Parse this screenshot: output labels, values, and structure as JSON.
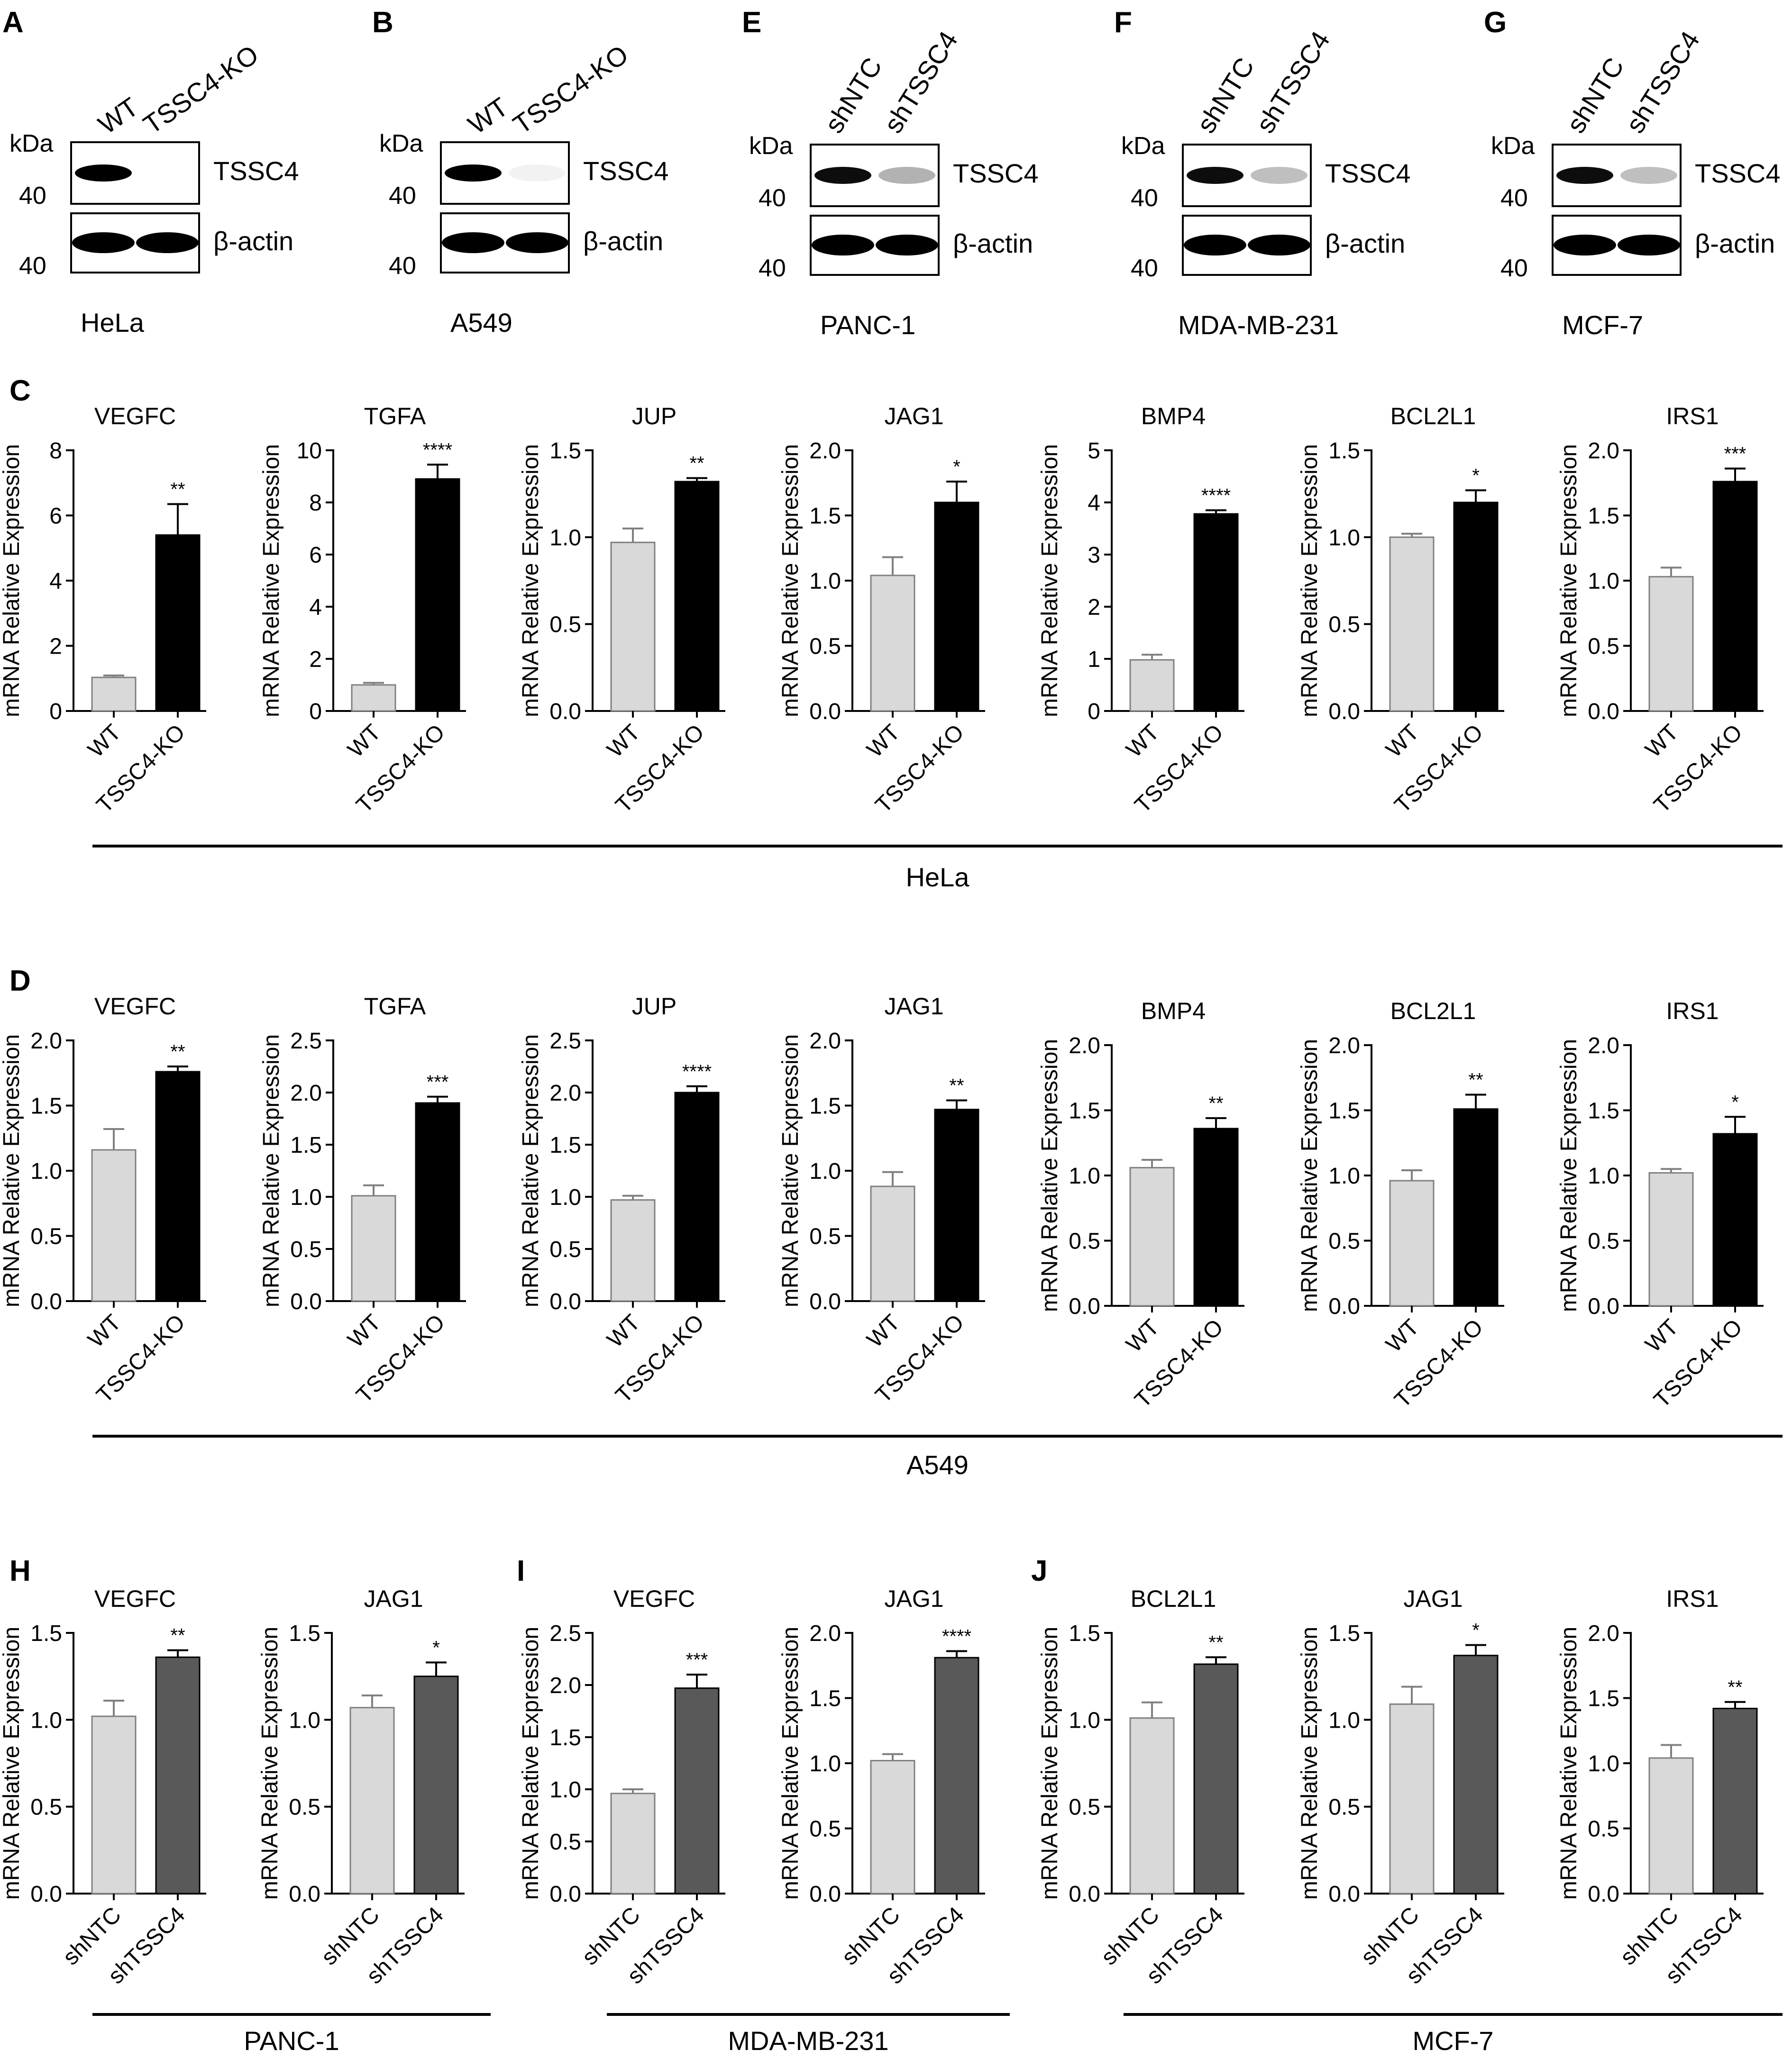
{
  "colors": {
    "wt_bar": "#d9d9d9",
    "ko_bar": "#000000",
    "sh_bar": "#595959",
    "axis": "#000000",
    "edge": "#808080"
  },
  "blots": [
    {
      "panel": "A",
      "lanes": [
        "WT",
        "TSSC4-KO"
      ],
      "cell_line": "HeLa",
      "kda": "kDa",
      "mw_top": "40",
      "mw_bottom": "40",
      "proteins": [
        "TSSC4",
        "β-actin"
      ],
      "band_intensity": [
        1.0,
        0.0
      ]
    },
    {
      "panel": "B",
      "lanes": [
        "WT",
        "TSSC4-KO"
      ],
      "cell_line": "A549",
      "kda": "kDa",
      "mw_top": "40",
      "mw_bottom": "40",
      "proteins": [
        "TSSC4",
        "β-actin"
      ],
      "band_intensity": [
        1.0,
        0.05
      ]
    },
    {
      "panel": "E",
      "lanes": [
        "shNTC",
        "shTSSC4"
      ],
      "cell_line": "PANC-1",
      "kda": "kDa",
      "mw_top": "40",
      "mw_bottom": "40",
      "proteins": [
        "TSSC4",
        "β-actin"
      ],
      "band_intensity": [
        0.95,
        0.3
      ]
    },
    {
      "panel": "F",
      "lanes": [
        "shNTC",
        "shTSSC4"
      ],
      "cell_line": "MDA-MB-231",
      "kda": "kDa",
      "mw_top": "40",
      "mw_bottom": "40",
      "proteins": [
        "TSSC4",
        "β-actin"
      ],
      "band_intensity": [
        0.95,
        0.25
      ]
    },
    {
      "panel": "G",
      "lanes": [
        "shNTC",
        "shTSSC4"
      ],
      "cell_line": "MCF-7",
      "kda": "kDa",
      "mw_top": "40",
      "mw_bottom": "40",
      "proteins": [
        "TSSC4",
        "β-actin"
      ],
      "band_intensity": [
        0.95,
        0.25
      ]
    }
  ],
  "group_labels": {
    "C": "HeLa",
    "D": "A549",
    "H": "PANC-1",
    "I": "MDA-MB-231",
    "J": "MCF-7"
  },
  "panel_letters": {
    "C": "C",
    "D": "D",
    "H": "H",
    "I": "I",
    "J": "J"
  },
  "chart_data": [
    {
      "id": "C1",
      "panel": "C",
      "type": "bar",
      "title": "VEGFC",
      "ylabel": "mRNA Relative Expression",
      "categories": [
        "WT",
        "TSSC4-KO"
      ],
      "values": [
        1.03,
        5.4
      ],
      "errors": [
        0.06,
        0.95
      ],
      "ylim": [
        0,
        8
      ],
      "yticks": [
        "0",
        "2",
        "4",
        "6",
        "8"
      ],
      "sig": "**"
    },
    {
      "id": "C2",
      "panel": "C",
      "type": "bar",
      "title": "TGFA",
      "ylabel": "mRNA Relative Expression",
      "categories": [
        "WT",
        "TSSC4-KO"
      ],
      "values": [
        1.0,
        8.9
      ],
      "errors": [
        0.08,
        0.55
      ],
      "ylim": [
        0,
        10
      ],
      "yticks": [
        "0",
        "2",
        "4",
        "6",
        "8",
        "10"
      ],
      "sig": "****"
    },
    {
      "id": "C3",
      "panel": "C",
      "type": "bar",
      "title": "JUP",
      "ylabel": "mRNA Relative Expression",
      "categories": [
        "WT",
        "TSSC4-KO"
      ],
      "values": [
        0.97,
        1.32
      ],
      "errors": [
        0.08,
        0.02
      ],
      "ylim": [
        0,
        1.5
      ],
      "yticks": [
        "0.0",
        "0.5",
        "1.0",
        "1.5"
      ],
      "sig": "**"
    },
    {
      "id": "C4",
      "panel": "C",
      "type": "bar",
      "title": "JAG1",
      "ylabel": "mRNA Relative Expression",
      "categories": [
        "WT",
        "TSSC4-KO"
      ],
      "values": [
        1.04,
        1.6
      ],
      "errors": [
        0.14,
        0.16
      ],
      "ylim": [
        0,
        2.0
      ],
      "yticks": [
        "0.0",
        "0.5",
        "1.0",
        "1.5",
        "2.0"
      ],
      "sig": "*"
    },
    {
      "id": "C5",
      "panel": "C",
      "type": "bar",
      "title": "BMP4",
      "ylabel": "mRNA Relative Expression",
      "categories": [
        "WT",
        "TSSC4-KO"
      ],
      "values": [
        0.98,
        3.78
      ],
      "errors": [
        0.1,
        0.07
      ],
      "ylim": [
        0,
        5
      ],
      "yticks": [
        "0",
        "1",
        "2",
        "3",
        "4",
        "5"
      ],
      "sig": "****"
    },
    {
      "id": "C6",
      "panel": "C",
      "type": "bar",
      "title": "BCL2L1",
      "ylabel": "mRNA Relative Expression",
      "categories": [
        "WT",
        "TSSC4-KO"
      ],
      "values": [
        1.0,
        1.2
      ],
      "errors": [
        0.02,
        0.07
      ],
      "ylim": [
        0,
        1.5
      ],
      "yticks": [
        "0.0",
        "0.5",
        "1.0",
        "1.5"
      ],
      "sig": "*"
    },
    {
      "id": "C7",
      "panel": "C",
      "type": "bar",
      "title": "IRS1",
      "ylabel": "mRNA Relative Expression",
      "categories": [
        "WT",
        "TSSC4-KO"
      ],
      "values": [
        1.03,
        1.76
      ],
      "errors": [
        0.07,
        0.1
      ],
      "ylim": [
        0,
        2.0
      ],
      "yticks": [
        "0.0",
        "0.5",
        "1.0",
        "1.5",
        "2.0"
      ],
      "sig": "***"
    },
    {
      "id": "D1",
      "panel": "D",
      "type": "bar",
      "title": "VEGFC",
      "ylabel": "mRNA Relative Expression",
      "categories": [
        "WT",
        "TSSC4-KO"
      ],
      "values": [
        1.16,
        1.76
      ],
      "errors": [
        0.16,
        0.04
      ],
      "ylim": [
        0,
        2.0
      ],
      "yticks": [
        "0.0",
        "0.5",
        "1.0",
        "1.5",
        "2.0"
      ],
      "sig": "**"
    },
    {
      "id": "D2",
      "panel": "D",
      "type": "bar",
      "title": "TGFA",
      "ylabel": "mRNA Relative Expression",
      "categories": [
        "WT",
        "TSSC4-KO"
      ],
      "values": [
        1.01,
        1.9
      ],
      "errors": [
        0.1,
        0.06
      ],
      "ylim": [
        0,
        2.5
      ],
      "yticks": [
        "0.0",
        "0.5",
        "1.0",
        "1.5",
        "2.0",
        "2.5"
      ],
      "sig": "***"
    },
    {
      "id": "D3",
      "panel": "D",
      "type": "bar",
      "title": "JUP",
      "ylabel": "mRNA Relative Expression",
      "categories": [
        "WT",
        "TSSC4-KO"
      ],
      "values": [
        0.97,
        2.0
      ],
      "errors": [
        0.04,
        0.06
      ],
      "ylim": [
        0,
        2.5
      ],
      "yticks": [
        "0.0",
        "0.5",
        "1.0",
        "1.5",
        "2.0",
        "2.5"
      ],
      "sig": "****"
    },
    {
      "id": "D4",
      "panel": "D",
      "type": "bar",
      "title": "JAG1",
      "ylabel": "mRNA Relative Expression",
      "categories": [
        "WT",
        "TSSC4-KO"
      ],
      "values": [
        0.88,
        1.47
      ],
      "errors": [
        0.11,
        0.07
      ],
      "ylim": [
        0,
        2.0
      ],
      "yticks": [
        "0.0",
        "0.5",
        "1.0",
        "1.5",
        "2.0"
      ],
      "sig": "**"
    },
    {
      "id": "D5",
      "panel": "D",
      "type": "bar",
      "title": "BMP4",
      "ylabel": "mRNA Relative Expression",
      "categories": [
        "WT",
        "TSSC4-KO"
      ],
      "values": [
        1.06,
        1.36
      ],
      "errors": [
        0.06,
        0.08
      ],
      "ylim": [
        0,
        2.0
      ],
      "yticks": [
        "0.0",
        "0.5",
        "1.0",
        "1.5",
        "2.0"
      ],
      "sig": "**"
    },
    {
      "id": "D6",
      "panel": "D",
      "type": "bar",
      "title": "BCL2L1",
      "ylabel": "mRNA Relative Expression",
      "categories": [
        "WT",
        "TSSC4-KO"
      ],
      "values": [
        0.96,
        1.51
      ],
      "errors": [
        0.08,
        0.11
      ],
      "ylim": [
        0,
        2.0
      ],
      "yticks": [
        "0.0",
        "0.5",
        "1.0",
        "1.5",
        "2.0"
      ],
      "sig": "**"
    },
    {
      "id": "D7",
      "panel": "D",
      "type": "bar",
      "title": "IRS1",
      "ylabel": "mRNA Relative Expression",
      "categories": [
        "WT",
        "TSSC4-KO"
      ],
      "values": [
        1.02,
        1.32
      ],
      "errors": [
        0.03,
        0.13
      ],
      "ylim": [
        0,
        2.0
      ],
      "yticks": [
        "0.0",
        "0.5",
        "1.0",
        "1.5",
        "2.0"
      ],
      "sig": "*"
    },
    {
      "id": "H1",
      "panel": "H",
      "type": "bar",
      "title": "VEGFC",
      "ylabel": "mRNA Relative Expression",
      "categories": [
        "shNTC",
        "shTSSC4"
      ],
      "values": [
        1.02,
        1.36
      ],
      "errors": [
        0.09,
        0.04
      ],
      "ylim": [
        0,
        1.5
      ],
      "yticks": [
        "0.0",
        "0.5",
        "1.0",
        "1.5"
      ],
      "sig": "**"
    },
    {
      "id": "H2",
      "panel": "H",
      "type": "bar",
      "title": "JAG1",
      "ylabel": "mRNA Relative Expression",
      "categories": [
        "shNTC",
        "shTSSC4"
      ],
      "values": [
        1.07,
        1.25
      ],
      "errors": [
        0.07,
        0.08
      ],
      "ylim": [
        0,
        1.5
      ],
      "yticks": [
        "0.0",
        "0.5",
        "1.0",
        "1.5"
      ],
      "sig": "*"
    },
    {
      "id": "I1",
      "panel": "I",
      "type": "bar",
      "title": "VEGFC",
      "ylabel": "mRNA Relative Expression",
      "categories": [
        "shNTC",
        "shTSSC4"
      ],
      "values": [
        0.96,
        1.97
      ],
      "errors": [
        0.04,
        0.13
      ],
      "ylim": [
        0,
        2.5
      ],
      "yticks": [
        "0.0",
        "0.5",
        "1.0",
        "1.5",
        "2.0",
        "2.5"
      ],
      "sig": "***"
    },
    {
      "id": "I2",
      "panel": "I",
      "type": "bar",
      "title": "JAG1",
      "ylabel": "mRNA Relative Expression",
      "categories": [
        "shNTC",
        "shTSSC4"
      ],
      "values": [
        1.02,
        1.81
      ],
      "errors": [
        0.05,
        0.05
      ],
      "ylim": [
        0,
        2.0
      ],
      "yticks": [
        "0.0",
        "0.5",
        "1.0",
        "1.5",
        "2.0"
      ],
      "sig": "****"
    },
    {
      "id": "J1",
      "panel": "J",
      "type": "bar",
      "title": "BCL2L1",
      "ylabel": "mRNA Relative Expression",
      "categories": [
        "shNTC",
        "shTSSC4"
      ],
      "values": [
        1.01,
        1.32
      ],
      "errors": [
        0.09,
        0.04
      ],
      "ylim": [
        0,
        1.5
      ],
      "yticks": [
        "0.0",
        "0.5",
        "1.0",
        "1.5"
      ],
      "sig": "**"
    },
    {
      "id": "J2",
      "panel": "J",
      "type": "bar",
      "title": "JAG1",
      "ylabel": "mRNA Relative Expression",
      "categories": [
        "shNTC",
        "shTSSC4"
      ],
      "values": [
        1.09,
        1.37
      ],
      "errors": [
        0.1,
        0.06
      ],
      "ylim": [
        0,
        1.5
      ],
      "yticks": [
        "0.0",
        "0.5",
        "1.0",
        "1.5"
      ],
      "sig": "*"
    },
    {
      "id": "J3",
      "panel": "J",
      "type": "bar",
      "title": "IRS1",
      "ylabel": "mRNA Relative Expression",
      "categories": [
        "shNTC",
        "shTSSC4"
      ],
      "values": [
        1.04,
        1.42
      ],
      "errors": [
        0.1,
        0.05
      ],
      "ylim": [
        0,
        2.0
      ],
      "yticks": [
        "0.0",
        "0.5",
        "1.0",
        "1.5",
        "2.0"
      ],
      "sig": "**"
    }
  ]
}
